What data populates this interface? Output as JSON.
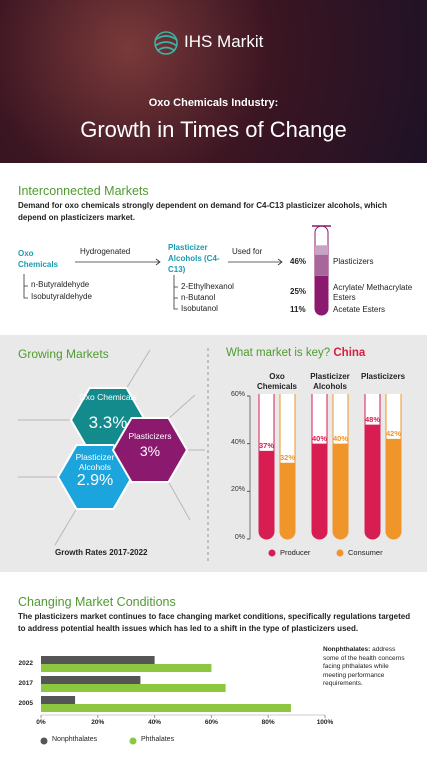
{
  "header": {
    "logo": "IHS Markit",
    "subtitle": "Oxo Chemicals Industry:",
    "title": "Growth in Times of Change"
  },
  "interconnected": {
    "heading": "Interconnected Markets",
    "text": "Demand for oxo chemicals strongly dependent on demand for C4-C13 plasticizer alcohols, which depend on plasticizers market.",
    "oxo": {
      "label": "Oxo Chemicals",
      "items": [
        "n-Butyraldehyde",
        "Isobutyraldehyde"
      ]
    },
    "step1": "Hydrogenated",
    "alcohols": {
      "label": "Plasticizer Alcohols (C4-C13)",
      "items": [
        "2-Ethylhexanol",
        "n-Butanol",
        "Isobutanol"
      ]
    },
    "step2": "Used for",
    "uses": {
      "type": "stacked-bar",
      "categories": [
        "Plasticizers",
        "Acrylate/ Methacrylate Esters",
        "Acetate Esters"
      ],
      "values": [
        46,
        25,
        11
      ],
      "value_labels": [
        "46%",
        "25%",
        "11%"
      ],
      "colors": [
        "#8b1a6e",
        "#a8679b",
        "#c9a3c3"
      ]
    }
  },
  "growing": {
    "heading": "Growing Markets",
    "chart": {
      "type": "hexagon",
      "categories": [
        "Oxo Chemicals",
        "Plasticizers",
        "Plasticizer Alcohols"
      ],
      "values": [
        3.3,
        3,
        2.9
      ],
      "value_labels": [
        "3.3%",
        "3%",
        "2.9%"
      ],
      "colors": [
        "#138a8c",
        "#8b1a6e",
        "#1ca5dd"
      ]
    },
    "caption": "Growth Rates 2017-2022"
  },
  "key": {
    "heading": "What market is key?",
    "highlight": "China",
    "chart": {
      "type": "bar",
      "categories": [
        "Oxo Chemicals",
        "Plasticizer Alcohols",
        "Plasticizers"
      ],
      "series": [
        {
          "name": "Producer",
          "color": "#d81d52",
          "values": [
            37,
            40,
            48
          ],
          "value_labels": [
            "37%",
            "40%",
            "48%"
          ]
        },
        {
          "name": "Consumer",
          "color": "#f0952a",
          "values": [
            32,
            40,
            42
          ],
          "value_labels": [
            "32%",
            "40%",
            "42%"
          ]
        }
      ],
      "ylim": [
        0,
        60
      ],
      "yticks": [
        {
          "value": 0,
          "label": "0%"
        },
        {
          "value": 20,
          "label": "20%"
        },
        {
          "value": 40,
          "label": "40%"
        },
        {
          "value": 60,
          "label": "60%"
        }
      ]
    }
  },
  "changing": {
    "heading": "Changing Market Conditions",
    "text": "The plasticizers market continues to face changing market conditions, specifically regulations targeted to address potential health issues which has led to a shift in the type of plasticizers used.",
    "chart": {
      "type": "horizontal-bar",
      "categories": [
        "2022",
        "2017",
        "2005"
      ],
      "series": [
        {
          "name": "Nonphthalates",
          "color": "#555555",
          "values": [
            40,
            35,
            12
          ]
        },
        {
          "name": "Phthalates",
          "color": "#8dc63f",
          "values": [
            60,
            65,
            88
          ]
        }
      ],
      "xlim": [
        0,
        100
      ],
      "xticks": [
        {
          "value": 0,
          "label": "0%"
        },
        {
          "value": 20,
          "label": "20%"
        },
        {
          "value": 40,
          "label": "40%"
        },
        {
          "value": 60,
          "label": "60%"
        },
        {
          "value": 80,
          "label": "80%"
        },
        {
          "value": 100,
          "label": "100%"
        }
      ]
    },
    "note": {
      "label": "Nonphthalates:",
      "text": "address some of the health concerns facing phthalates while meeting performance requirements."
    }
  }
}
